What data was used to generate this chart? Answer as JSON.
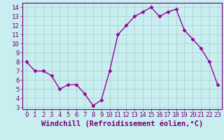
{
  "x": [
    0,
    1,
    2,
    3,
    4,
    5,
    6,
    7,
    8,
    9,
    10,
    11,
    12,
    13,
    14,
    15,
    16,
    17,
    18,
    19,
    20,
    21,
    22,
    23
  ],
  "y": [
    8.0,
    7.0,
    7.0,
    6.5,
    5.0,
    5.5,
    5.5,
    4.5,
    3.2,
    3.8,
    7.0,
    11.0,
    12.0,
    13.0,
    13.5,
    14.0,
    13.0,
    13.5,
    13.8,
    11.5,
    10.5,
    9.5,
    8.0,
    5.5
  ],
  "line_color": "#990099",
  "marker": "D",
  "marker_size": 2.5,
  "bg_color": "#c8eef0",
  "grid_color": "#aacccc",
  "xlabel": "Windchill (Refroidissement éolien,°C)",
  "ylim": [
    2.8,
    14.5
  ],
  "xlim": [
    -0.5,
    23.5
  ],
  "yticks": [
    3,
    4,
    5,
    6,
    7,
    8,
    9,
    10,
    11,
    12,
    13,
    14
  ],
  "xticks": [
    0,
    1,
    2,
    3,
    4,
    5,
    6,
    7,
    8,
    9,
    10,
    11,
    12,
    13,
    14,
    15,
    16,
    17,
    18,
    19,
    20,
    21,
    22,
    23
  ],
  "xlabel_fontsize": 7.5,
  "tick_fontsize": 6.5,
  "tick_color": "#770077",
  "spine_color": "#770077",
  "linewidth": 1.0
}
